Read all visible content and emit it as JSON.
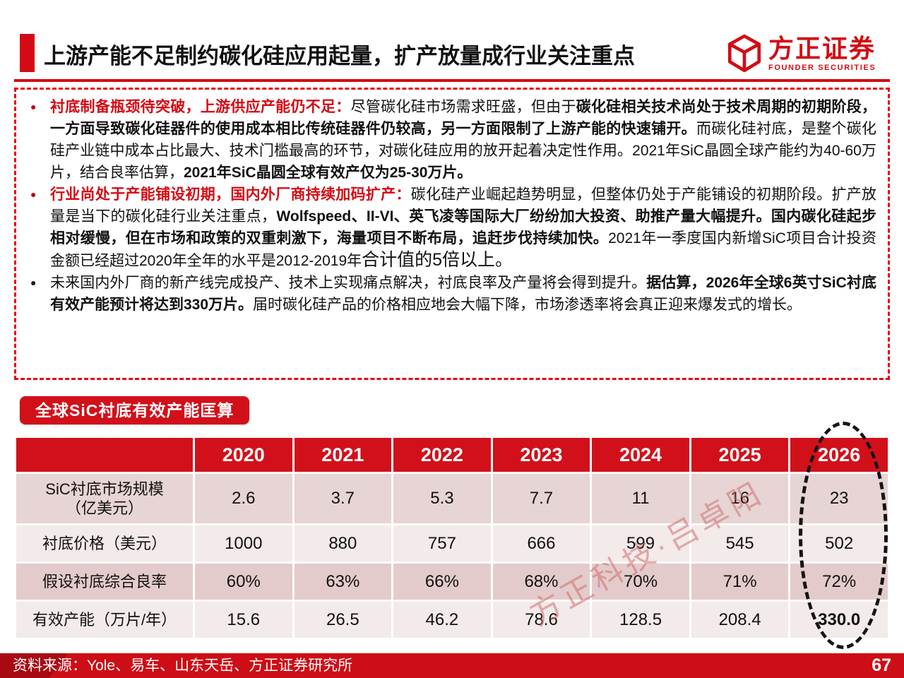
{
  "header": {
    "title": "上游产能不足制约碳化硅应用起量，扩产放量成行业关注重点",
    "logo": {
      "cn": "方正证券",
      "en": "FOUNDER SECURITIES"
    }
  },
  "callout": {
    "bullets": [
      {
        "dot_color": "#c00000",
        "segments": [
          {
            "style": "red-bold",
            "text": "衬底制备瓶颈待突破，上游供应产能仍不足："
          },
          {
            "style": "normal",
            "text": "尽管碳化硅市场需求旺盛，但由于"
          },
          {
            "style": "bold",
            "text": "碳化硅相关技术尚处于技术周期的初期阶段，一方面导致碳化硅器件的使用成本相比传统硅器件仍较高，另一方面限制了上游产能的快速铺开。"
          },
          {
            "style": "normal",
            "text": "而碳化硅衬底，是整个碳化硅产业链中成本占比最大、技术门槛最高的环节，对碳化硅应用的放开起着决定性作用。2021年SiC晶圆全球产能约为40-60万片，结合良率估算，"
          },
          {
            "style": "bold",
            "text": "2021年SiC晶圆全球有效产仅为25-30万片。"
          }
        ]
      },
      {
        "dot_color": "#c00000",
        "segments": [
          {
            "style": "red-bold",
            "text": "行业尚处于产能铺设初期，国内外厂商持续加码扩产："
          },
          {
            "style": "normal",
            "text": "碳化硅产业崛起趋势明显，但整体仍处于产能铺设的初期阶段。扩产放量是当下的碳化硅行业关注重点，"
          },
          {
            "style": "bold",
            "text": "Wolfspeed、II-VI、英飞凌等国际大厂纷纷加大投资、助推产量大幅提升。国内碳化硅起步相对缓慢，但在市场和政策的双重刺激下，海量项目不断布局，追赶步伐持续加快。"
          },
          {
            "style": "normal",
            "text": "2021年一季度国内新增SiC项目合计投资金额已经超过2020年全年的水平是2012-2019年"
          },
          {
            "style": "normal-large",
            "text": "合计值的5倍以上。"
          }
        ]
      },
      {
        "dot_color": "#1a1a1a",
        "segments": [
          {
            "style": "normal",
            "text": "未来国内外厂商的新产线完成投产、技术上实现痛点解决，衬底良率及产量将会得到提升。"
          },
          {
            "style": "bold",
            "text": "据估算，2026年全球6英寸SiC衬底有效产能预计将达到330万片。"
          },
          {
            "style": "normal",
            "text": "届时碳化硅产品的价格相应地会大幅下降，市场渗透率将会真正迎来爆发式的增长。"
          }
        ]
      }
    ]
  },
  "table": {
    "label": "全球SiC衬底有效产能匡算",
    "years": [
      "2020",
      "2021",
      "2022",
      "2023",
      "2024",
      "2025",
      "2026"
    ],
    "rows": [
      {
        "name": "SiC衬底市场规模\n（亿美元）",
        "values": [
          "2.6",
          "3.7",
          "5.3",
          "7.7",
          "11",
          "16",
          "23"
        ],
        "bg": "#e7d4d4",
        "bold_cols": []
      },
      {
        "name": "衬底价格（美元）",
        "values": [
          "1000",
          "880",
          "757",
          "666",
          "599",
          "545",
          "502"
        ],
        "bg": "#f3eaea",
        "bold_cols": []
      },
      {
        "name": "假设衬底综合良率",
        "values": [
          "60%",
          "63%",
          "66%",
          "68%",
          "70%",
          "71%",
          "72%"
        ],
        "bg": "#e4cbcb",
        "bold_cols": []
      },
      {
        "name": "有效产能（万片/年）",
        "values": [
          "15.6",
          "26.5",
          "46.2",
          "78.6",
          "128.5",
          "208.4",
          "330.0"
        ],
        "bg": "#f3eaea",
        "bold_cols": [
          6
        ]
      }
    ]
  },
  "watermark": "方正科技·吕卓阳",
  "footer": {
    "source": "资料来源：Yole、易车、山东天岳、方正证券研究所",
    "page": "67"
  },
  "colors": {
    "accent_red": "#d40b14",
    "table_header_red": "#d2101a",
    "footer_red": "#cd0e16",
    "row_shade_dark": "#e4cbcb",
    "row_shade_light": "#f3eaea",
    "watermark_pink": "rgba(208,108,108,0.55)"
  }
}
